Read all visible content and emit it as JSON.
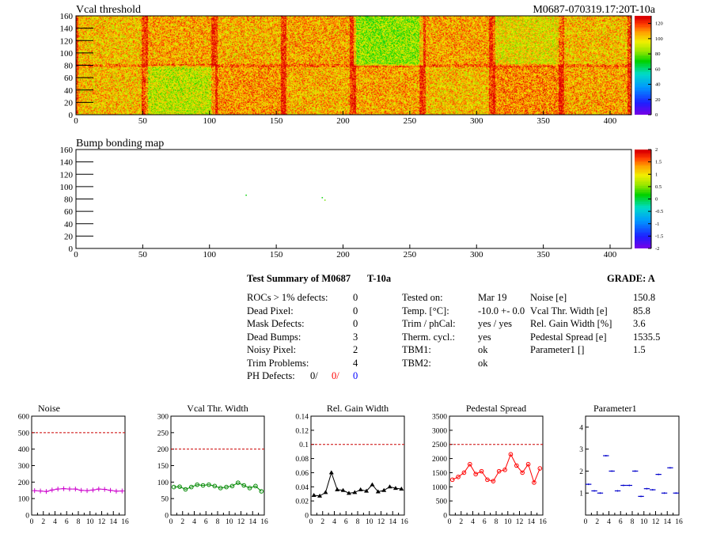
{
  "title_left": "Vcal threshold",
  "title_right": "M0687-070319.17:20T-10a",
  "bump_title": "Bump bonding map",
  "summary": {
    "heading": "Test Summary of M0687",
    "temp_tag": "T-10a",
    "grade": "GRADE:  A",
    "col1": [
      {
        "label": "ROCs > 1% defects:",
        "value": "0"
      },
      {
        "label": "Dead Pixel:",
        "value": "0"
      },
      {
        "label": "Mask Defects:",
        "value": "0"
      },
      {
        "label": "Dead Bumps:",
        "value": "3"
      },
      {
        "label": "Noisy Pixel:",
        "value": "2"
      },
      {
        "label": "Trim Problems:",
        "value": "4"
      }
    ],
    "ph_label": "PH Defects:",
    "ph_values": [
      "0/",
      "0/",
      "0"
    ],
    "ph_colors": [
      "#000000",
      "#ff0000",
      "#0000ff"
    ],
    "col2": [
      {
        "label": "Tested on:",
        "value": "Mar 19"
      },
      {
        "label": "Temp. [°C]:",
        "value": "-10.0 +- 0.0"
      },
      {
        "label": "Trim / phCal:",
        "value": "yes / yes"
      },
      {
        "label": "Therm. cycl.:",
        "value": "yes"
      },
      {
        "label": "TBM1:",
        "value": "ok"
      },
      {
        "label": "TBM2:",
        "value": "ok"
      }
    ],
    "col3": [
      {
        "label": "Noise [e]",
        "value": "150.8"
      },
      {
        "label": "Vcal Thr. Width [e]",
        "value": "85.8"
      },
      {
        "label": "Rel. Gain Width [%]",
        "value": "3.6"
      },
      {
        "label": "Pedestal Spread [e]",
        "value": "1535.5"
      },
      {
        "label": "Parameter1 []",
        "value": "1.5"
      }
    ]
  },
  "chart_data": [
    {
      "type": "heatmap",
      "title": "Vcal threshold",
      "xlim": [
        0,
        416
      ],
      "ylim": [
        0,
        160
      ],
      "xticks": [
        0,
        50,
        100,
        150,
        200,
        250,
        300,
        350,
        400
      ],
      "yticks": [
        0,
        20,
        40,
        60,
        80,
        100,
        120,
        140,
        160
      ],
      "colorbar": {
        "min": 0,
        "max": 130,
        "ticks": [
          0,
          20,
          40,
          60,
          80,
          100,
          120
        ]
      },
      "roc_grid": {
        "cols": 8,
        "rows": 2,
        "roc_width": 52,
        "roc_height": 80
      },
      "roc_mean_levels": {
        "top": [
          104,
          108,
          106,
          108,
          85,
          108,
          98,
          104
        ],
        "bottom": [
          104,
          92,
          110,
          106,
          108,
          104,
          112,
          108
        ]
      }
    },
    {
      "type": "heatmap",
      "title": "Bump bonding map",
      "xlim": [
        0,
        416
      ],
      "ylim": [
        0,
        160
      ],
      "xticks": [
        0,
        50,
        100,
        150,
        200,
        250,
        300,
        350,
        400
      ],
      "yticks": [
        0,
        20,
        40,
        60,
        80,
        100,
        120,
        140,
        160
      ],
      "colorbar": {
        "min": -2,
        "max": 2,
        "ticks": [
          -2,
          -1.5,
          -1,
          -0.5,
          0,
          0.5,
          1,
          1.5,
          2
        ]
      },
      "points": [
        {
          "x": 127,
          "y": 87,
          "v": 0.2
        },
        {
          "x": 184,
          "y": 83,
          "v": 0.2
        },
        {
          "x": 186,
          "y": 79,
          "v": 0.5
        }
      ]
    },
    {
      "type": "line",
      "title": "Noise",
      "x": [
        0,
        1,
        2,
        3,
        4,
        5,
        6,
        7,
        8,
        9,
        10,
        11,
        12,
        13,
        14,
        15
      ],
      "values": [
        148,
        146,
        143,
        152,
        158,
        160,
        158,
        158,
        150,
        148,
        152,
        158,
        156,
        150,
        145,
        146
      ],
      "xlim": [
        0,
        16
      ],
      "ylim": [
        0,
        600
      ],
      "yticks": [
        0,
        100,
        200,
        300,
        400,
        500,
        600
      ],
      "xticks": [
        0,
        2,
        4,
        6,
        8,
        10,
        12,
        14,
        16
      ],
      "reference": 500,
      "color": "#cc00cc",
      "marker": "cross"
    },
    {
      "type": "line",
      "title": "Vcal Thr. Width",
      "x": [
        0,
        1,
        2,
        3,
        4,
        5,
        6,
        7,
        8,
        9,
        10,
        11,
        12,
        13,
        14,
        15
      ],
      "values": [
        85,
        86,
        78,
        85,
        92,
        90,
        92,
        88,
        82,
        85,
        88,
        98,
        90,
        82,
        88,
        72
      ],
      "xlim": [
        0,
        16
      ],
      "ylim": [
        0,
        300
      ],
      "yticks": [
        0,
        50,
        100,
        150,
        200,
        250,
        300
      ],
      "xticks": [
        0,
        2,
        4,
        6,
        8,
        10,
        12,
        14,
        16
      ],
      "reference": 200,
      "color": "#008800",
      "marker": "circle"
    },
    {
      "type": "line",
      "title": "Rel. Gain Width",
      "x": [
        0,
        1,
        2,
        3,
        4,
        5,
        6,
        7,
        8,
        9,
        10,
        11,
        12,
        13,
        14,
        15
      ],
      "values": [
        0.028,
        0.027,
        0.032,
        0.06,
        0.036,
        0.035,
        0.031,
        0.032,
        0.036,
        0.034,
        0.043,
        0.033,
        0.035,
        0.04,
        0.038,
        0.037
      ],
      "xlim": [
        0,
        16
      ],
      "ylim": [
        0,
        0.14
      ],
      "yticks": [
        0,
        0.02,
        0.04,
        0.06,
        0.08,
        0.1,
        0.12,
        0.14
      ],
      "xticks": [
        0,
        2,
        4,
        6,
        8,
        10,
        12,
        14,
        16
      ],
      "reference": 0.1,
      "color": "#000000",
      "marker": "triangle"
    },
    {
      "type": "line",
      "title": "Pedestal Spread",
      "x": [
        0,
        1,
        2,
        3,
        4,
        5,
        6,
        7,
        8,
        9,
        10,
        11,
        12,
        13,
        14,
        15
      ],
      "values": [
        1250,
        1350,
        1500,
        1800,
        1450,
        1550,
        1250,
        1200,
        1550,
        1600,
        2150,
        1750,
        1500,
        1800,
        1150,
        1650
      ],
      "xlim": [
        0,
        16
      ],
      "ylim": [
        0,
        3500
      ],
      "yticks": [
        0,
        500,
        1000,
        1500,
        2000,
        2500,
        3000,
        3500
      ],
      "xticks": [
        0,
        2,
        4,
        6,
        8,
        10,
        12,
        14,
        16
      ],
      "reference": 2500,
      "color": "#ff0000",
      "marker": "circle"
    },
    {
      "type": "scatter",
      "title": "Parameter1",
      "x": [
        0,
        1,
        2,
        3,
        4,
        5,
        6,
        7,
        8,
        9,
        10,
        11,
        12,
        13,
        14,
        15
      ],
      "values": [
        1.4,
        1.1,
        1.0,
        2.7,
        2.0,
        1.1,
        1.35,
        1.35,
        2.0,
        0.85,
        1.2,
        1.15,
        1.85,
        1.0,
        2.15,
        1.0
      ],
      "xlim": [
        0,
        16
      ],
      "ylim": [
        0,
        4.5
      ],
      "yticks": [
        1,
        2,
        3,
        4
      ],
      "xticks": [
        0,
        2,
        4,
        6,
        8,
        10,
        12,
        14,
        16
      ],
      "color": "#0000cc",
      "marker": "hbar"
    }
  ]
}
